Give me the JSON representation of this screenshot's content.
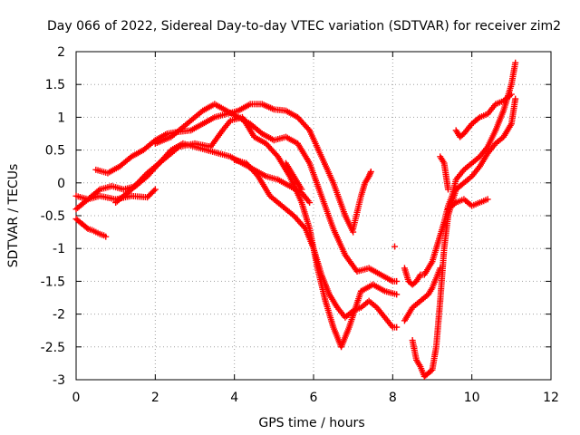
{
  "chart_data": {
    "type": "scatter",
    "title": "Day 066 of 2022, Sidereal Day-to-day VTEC variation (SDTVAR) for receiver zim2",
    "xlabel": "GPS time / hours",
    "ylabel": "SDTVAR / TECUs",
    "xlim": [
      0,
      12
    ],
    "ylim": [
      -3,
      2
    ],
    "xticks": [
      "0",
      "2",
      "4",
      "6",
      "8",
      "10",
      "12"
    ],
    "yticks": [
      "-3",
      "-2.5",
      "-2",
      "-1.5",
      "-1",
      "-0.5",
      "0",
      "0.5",
      "1",
      "1.5",
      "2"
    ],
    "grid": true,
    "marker": "+",
    "color": "#ff0000",
    "series": [
      {
        "x": [
          0.0,
          0.1,
          0.2,
          0.3,
          0.4,
          0.5,
          0.6,
          0.7,
          0.75
        ],
        "y": [
          -0.55,
          -0.6,
          -0.65,
          -0.7,
          -0.72,
          -0.75,
          -0.78,
          -0.8,
          -0.82
        ]
      },
      {
        "x": [
          0.0,
          0.3,
          0.6,
          1.0,
          1.4,
          1.8,
          2.0
        ],
        "y": [
          -0.2,
          -0.25,
          -0.2,
          -0.25,
          -0.2,
          -0.22,
          -0.1
        ]
      },
      {
        "x": [
          0.0,
          0.3,
          0.6,
          0.9,
          1.2,
          1.5,
          1.8,
          2.1,
          2.4,
          2.7,
          3.0,
          3.3,
          3.6,
          3.9,
          4.2,
          4.5,
          4.8,
          5.1,
          5.4,
          5.7,
          5.9
        ],
        "y": [
          -0.4,
          -0.25,
          -0.1,
          -0.05,
          -0.1,
          -0.05,
          0.1,
          0.3,
          0.5,
          0.6,
          0.55,
          0.5,
          0.45,
          0.4,
          0.3,
          0.2,
          0.1,
          0.05,
          -0.05,
          -0.15,
          -0.3
        ]
      },
      {
        "x": [
          0.5,
          0.8,
          1.1,
          1.4,
          1.7,
          2.0,
          2.3,
          2.6,
          2.9,
          3.2,
          3.5,
          3.8,
          4.1,
          4.4,
          4.7,
          5.0,
          5.3,
          5.6,
          5.9,
          6.2,
          6.5,
          6.8,
          7.0
        ],
        "y": [
          0.2,
          0.15,
          0.25,
          0.4,
          0.5,
          0.65,
          0.75,
          0.78,
          0.8,
          0.9,
          1.0,
          1.05,
          1.1,
          1.2,
          1.2,
          1.12,
          1.1,
          1.0,
          0.8,
          0.4,
          0.0,
          -0.5,
          -0.75
        ]
      },
      {
        "x": [
          1.0,
          1.4,
          1.8,
          2.2,
          2.6,
          3.0,
          3.4,
          3.7,
          3.9,
          4.2,
          4.5,
          4.8,
          5.1,
          5.4,
          5.7,
          5.9,
          6.1,
          6.3,
          6.5,
          6.7,
          6.9,
          7.2,
          7.5,
          7.8,
          8.1
        ],
        "y": [
          -0.3,
          -0.1,
          0.15,
          0.35,
          0.55,
          0.6,
          0.55,
          0.8,
          0.95,
          1.0,
          0.7,
          0.6,
          0.4,
          0.1,
          -0.3,
          -0.7,
          -1.3,
          -1.8,
          -2.2,
          -2.5,
          -2.2,
          -1.65,
          -1.55,
          -1.65,
          -1.7
        ]
      },
      {
        "x": [
          2.0,
          2.4,
          2.8,
          3.2,
          3.5,
          3.8,
          4.1,
          4.4,
          4.7,
          5.0,
          5.3,
          5.6,
          5.9,
          6.2,
          6.5,
          6.8,
          7.1,
          7.4,
          7.7,
          8.0,
          8.1
        ],
        "y": [
          0.6,
          0.7,
          0.9,
          1.1,
          1.2,
          1.1,
          1.0,
          0.9,
          0.75,
          0.65,
          0.7,
          0.6,
          0.3,
          -0.2,
          -0.7,
          -1.1,
          -1.35,
          -1.3,
          -1.4,
          -1.5,
          -1.5
        ]
      },
      {
        "x": [
          4.0,
          4.3,
          4.6,
          4.9,
          5.2,
          5.5,
          5.8,
          6.0,
          6.2,
          6.4,
          6.6,
          6.8,
          7.0,
          7.2,
          7.4,
          7.6,
          7.8,
          8.0,
          8.1
        ],
        "y": [
          0.35,
          0.3,
          0.1,
          -0.2,
          -0.35,
          -0.5,
          -0.7,
          -1.0,
          -1.4,
          -1.7,
          -1.9,
          -2.05,
          -1.95,
          -1.9,
          -1.8,
          -1.9,
          -2.05,
          -2.2,
          -2.2
        ]
      },
      {
        "x": [
          5.3,
          5.5,
          5.7
        ],
        "y": [
          0.3,
          0.1,
          -0.1
        ]
      },
      {
        "x": [
          7.0,
          7.1,
          7.2,
          7.3,
          7.4,
          7.45
        ],
        "y": [
          -0.7,
          -0.45,
          -0.2,
          0.0,
          0.1,
          0.17
        ]
      },
      {
        "x": [
          8.05
        ],
        "y": [
          -0.97
        ]
      },
      {
        "x": [
          8.3,
          8.4,
          8.5,
          8.6,
          8.7,
          8.8,
          8.9,
          9.0,
          9.1,
          9.2,
          9.3,
          9.4,
          9.5,
          9.6,
          9.8,
          10.0,
          10.2,
          10.4,
          10.6,
          10.8,
          11.0,
          11.1
        ],
        "y": [
          -1.3,
          -1.5,
          -1.55,
          -1.5,
          -1.4,
          -1.4,
          -1.3,
          -1.2,
          -1.0,
          -0.8,
          -0.6,
          -0.35,
          -0.2,
          0.05,
          0.2,
          0.3,
          0.4,
          0.55,
          0.8,
          1.1,
          1.5,
          1.83
        ]
      },
      {
        "x": [
          8.5,
          8.6,
          8.7,
          8.8,
          8.9,
          9.0,
          9.1,
          9.2,
          9.3,
          9.4,
          9.5,
          9.6,
          9.7,
          9.8,
          10.0,
          10.2,
          10.4,
          10.6,
          10.8,
          11.0,
          11.1
        ],
        "y": [
          -2.4,
          -2.7,
          -2.8,
          -2.95,
          -2.9,
          -2.85,
          -2.5,
          -1.8,
          -1.0,
          -0.5,
          -0.3,
          -0.1,
          -0.05,
          0.0,
          0.1,
          0.25,
          0.45,
          0.6,
          0.7,
          0.9,
          1.28
        ]
      },
      {
        "x": [
          8.3,
          8.5,
          8.7,
          8.9,
          9.0,
          9.1,
          9.2
        ],
        "y": [
          -2.1,
          -1.9,
          -1.8,
          -1.7,
          -1.6,
          -1.45,
          -1.3
        ]
      },
      {
        "x": [
          9.2,
          9.3,
          9.35,
          9.4
        ],
        "y": [
          0.4,
          0.3,
          0.1,
          -0.1
        ]
      },
      {
        "x": [
          9.4,
          9.6,
          9.8,
          10.0,
          10.2,
          10.4
        ],
        "y": [
          -0.4,
          -0.3,
          -0.25,
          -0.35,
          -0.3,
          -0.25
        ]
      },
      {
        "x": [
          9.6,
          9.7,
          9.8,
          10.0,
          10.2,
          10.4,
          10.6,
          10.8,
          11.0
        ],
        "y": [
          0.8,
          0.7,
          0.75,
          0.9,
          1.0,
          1.05,
          1.2,
          1.25,
          1.35
        ]
      }
    ]
  }
}
